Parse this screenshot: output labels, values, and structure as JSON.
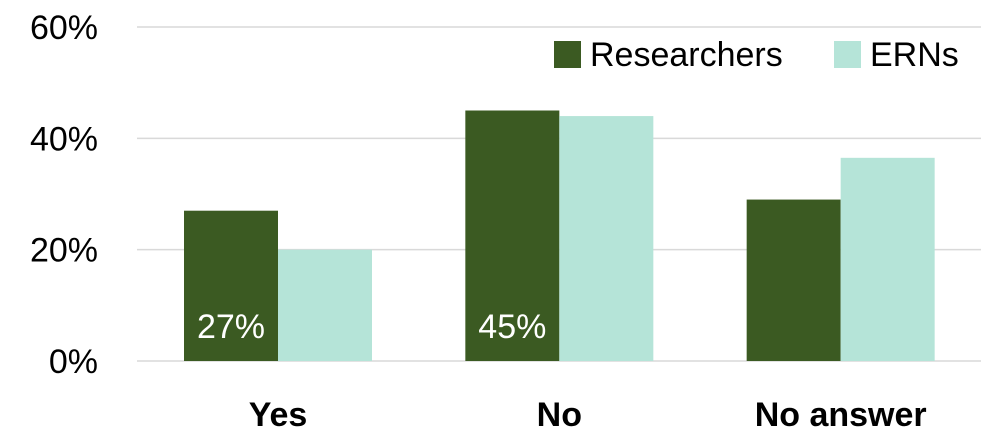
{
  "chart_data": {
    "type": "bar",
    "categories": [
      "Yes",
      "No",
      "No answer"
    ],
    "series": [
      {
        "name": "Researchers",
        "values": [
          27,
          45,
          29
        ],
        "color": "#3b5a22"
      },
      {
        "name": "ERNs",
        "values": [
          20,
          44,
          36.5
        ],
        "color": "#b5e4d8"
      }
    ],
    "ylim": [
      0,
      60
    ],
    "yticks": [
      0,
      20,
      40,
      60
    ],
    "ytick_labels": [
      "0%",
      "20%",
      "40%",
      "60%"
    ],
    "data_labels": [
      {
        "series": 0,
        "category": 0,
        "text": "27%"
      },
      {
        "series": 0,
        "category": 1,
        "text": "45%"
      }
    ],
    "grid": true,
    "legend_position": "top-right",
    "colors": {
      "gridline": "#d9d9d9",
      "axis": "#d9d9d9"
    }
  }
}
